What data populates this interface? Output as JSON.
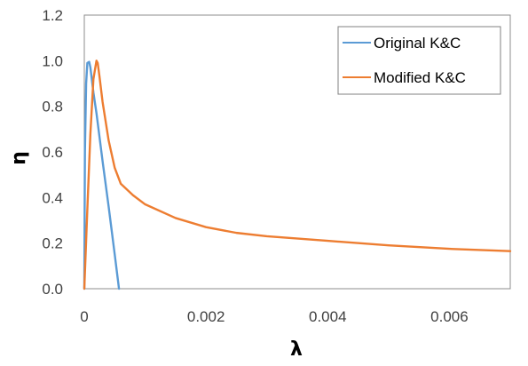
{
  "chart_data": {
    "type": "line",
    "title": "",
    "xlabel": "λ",
    "ylabel": "η",
    "xlim": [
      0,
      0.007
    ],
    "ylim": [
      0,
      1.2
    ],
    "x_ticks": [
      0,
      0.002,
      0.004,
      0.006
    ],
    "x_tick_labels": [
      "0",
      "0.002",
      "0.004",
      "0.006"
    ],
    "y_ticks": [
      0,
      0.2,
      0.4,
      0.6,
      0.8,
      1.0,
      1.2
    ],
    "y_tick_labels": [
      "0.0",
      "0.2",
      "0.4",
      "0.6",
      "0.8",
      "1.0",
      "1.2"
    ],
    "grid": false,
    "legend_position": "top-right",
    "series": [
      {
        "name": "Original K&C",
        "color": "#5B9BD5",
        "points": [
          [
            0,
            0
          ],
          [
            1e-05,
            0.6
          ],
          [
            3e-05,
            0.9
          ],
          [
            5e-05,
            0.99
          ],
          [
            8e-05,
            0.995
          ],
          [
            0.0001,
            0.97
          ],
          [
            0.00015,
            0.86
          ],
          [
            0.0002,
            0.77
          ],
          [
            0.0003,
            0.56
          ],
          [
            0.0004,
            0.36
          ],
          [
            0.0005,
            0.15
          ],
          [
            0.00057,
            0.0
          ]
        ]
      },
      {
        "name": "Modified K&C",
        "color": "#ED7D31",
        "points": [
          [
            0,
            0
          ],
          [
            5e-05,
            0.35
          ],
          [
            0.0001,
            0.68
          ],
          [
            0.00015,
            0.92
          ],
          [
            0.0002,
            1.0
          ],
          [
            0.00022,
            0.99
          ],
          [
            0.00025,
            0.93
          ],
          [
            0.0003,
            0.82
          ],
          [
            0.0004,
            0.65
          ],
          [
            0.0005,
            0.53
          ],
          [
            0.0006,
            0.46
          ],
          [
            0.0008,
            0.41
          ],
          [
            0.001,
            0.37
          ],
          [
            0.0015,
            0.31
          ],
          [
            0.002,
            0.27
          ],
          [
            0.0025,
            0.245
          ],
          [
            0.003,
            0.23
          ],
          [
            0.004,
            0.21
          ],
          [
            0.005,
            0.19
          ],
          [
            0.006,
            0.175
          ],
          [
            0.007,
            0.165
          ]
        ]
      }
    ]
  }
}
